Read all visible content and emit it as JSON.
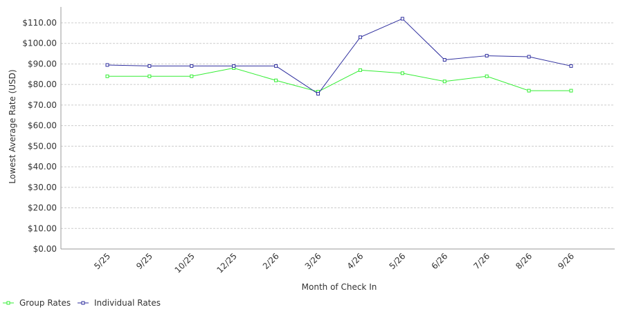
{
  "chart_data": {
    "type": "line",
    "categories": [
      "5/25",
      "9/25",
      "10/25",
      "12/25",
      "2/26",
      "3/26",
      "4/26",
      "5/26",
      "6/26",
      "7/26",
      "8/26",
      "9/26"
    ],
    "series": [
      {
        "name": "Group Rates",
        "color": "#33ee33",
        "values": [
          84,
          84,
          84,
          88,
          82,
          76.5,
          87,
          85.5,
          81.5,
          84,
          77,
          77
        ]
      },
      {
        "name": "Individual Rates",
        "color": "#2e2e9e",
        "values": [
          89.5,
          89,
          89,
          89,
          89,
          75.5,
          103,
          112,
          92,
          94,
          93.5,
          89
        ]
      }
    ],
    "title": "",
    "xlabel": "Month of Check In",
    "ylabel": "Lowest Average Rate (USD)",
    "ylim": [
      0,
      110
    ],
    "yticks": [
      0,
      10,
      20,
      30,
      40,
      50,
      60,
      70,
      80,
      90,
      100,
      110
    ],
    "ytick_labels": [
      "$0.00",
      "$10.00",
      "$20.00",
      "$30.00",
      "$40.00",
      "$50.00",
      "$60.00",
      "$70.00",
      "$80.00",
      "$90.00",
      "$100.00",
      "$110.00"
    ],
    "grid": true,
    "legend_position": "bottom-left"
  }
}
